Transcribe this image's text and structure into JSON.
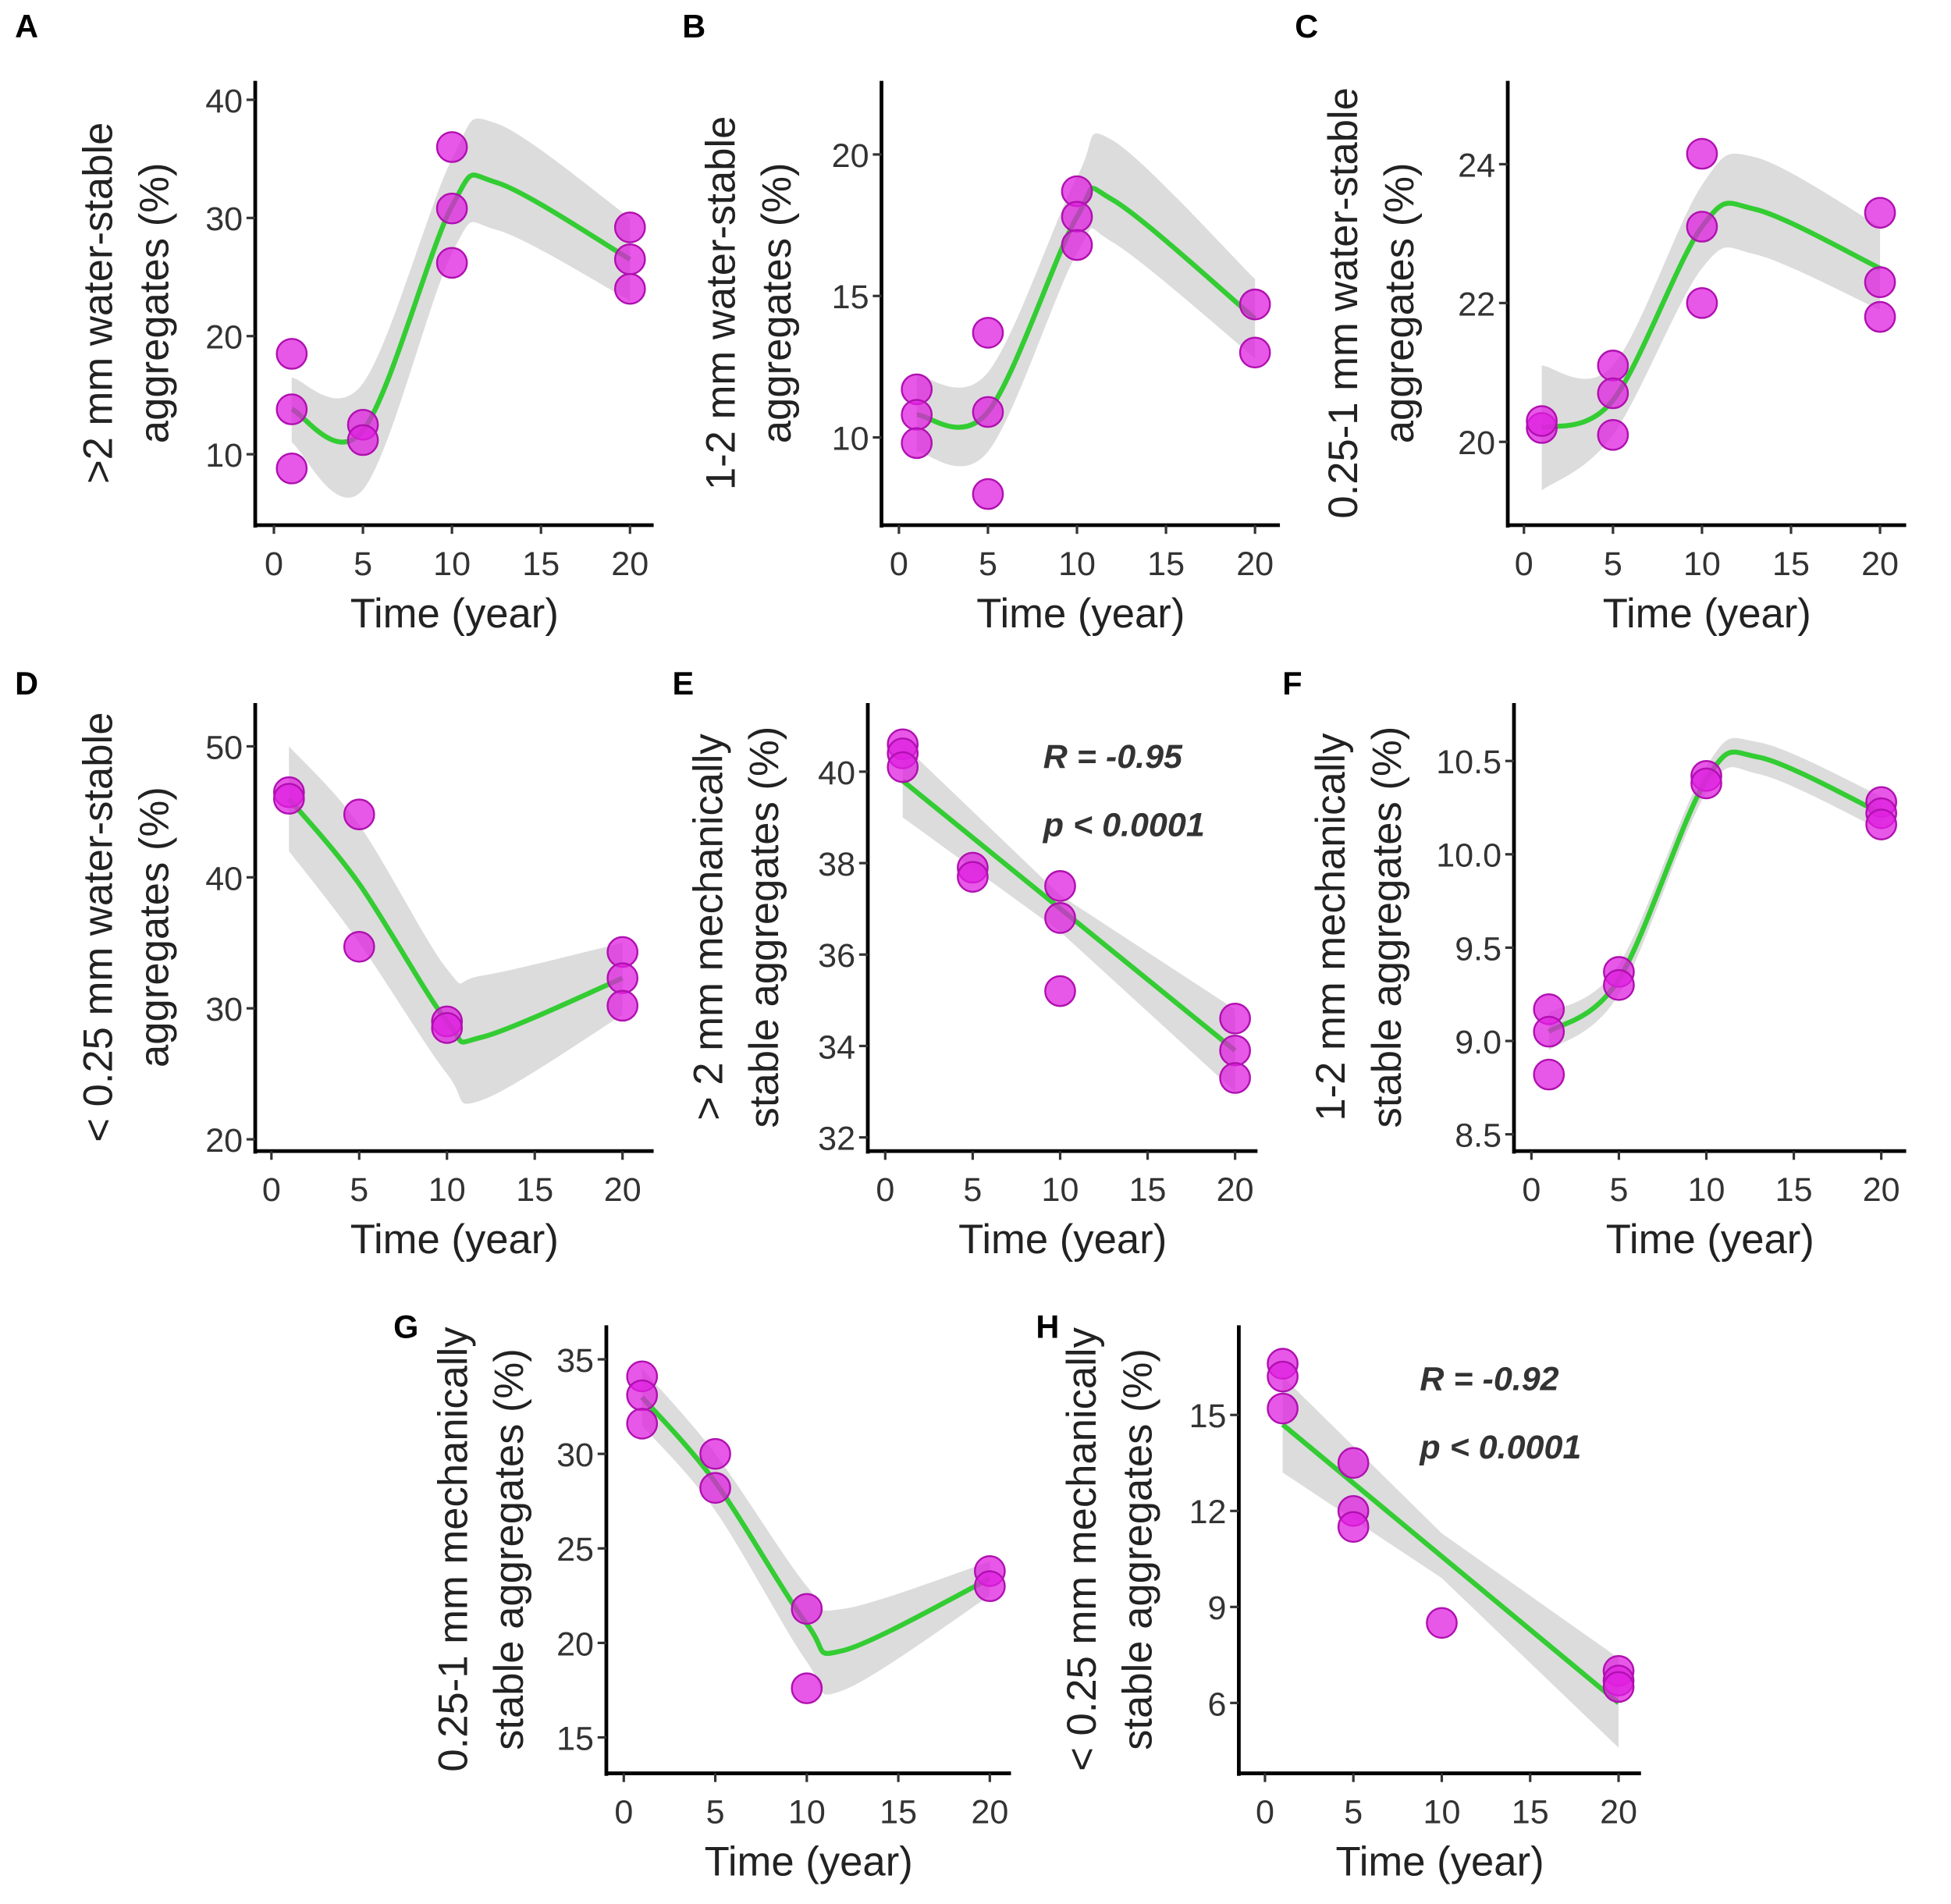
{
  "chart_data": [
    {
      "panel": "A",
      "type": "scatter",
      "xlabel": "Time (year)",
      "ylabel": [
        ">2 mm water-stable",
        "aggregates (%)"
      ],
      "xticks": [
        0,
        5,
        10,
        15,
        20
      ],
      "yticks": [
        10,
        20,
        30,
        40
      ],
      "xlim": [
        -1,
        21.3
      ],
      "ylim": [
        4,
        41.6
      ],
      "points": [
        [
          1,
          18.5
        ],
        [
          1,
          13.8
        ],
        [
          1,
          8.8
        ],
        [
          5,
          12.5
        ],
        [
          5,
          11.2
        ],
        [
          10,
          36
        ],
        [
          10,
          30.8
        ],
        [
          10,
          26.2
        ],
        [
          20,
          29.2
        ],
        [
          20,
          26.5
        ],
        [
          20,
          24
        ]
      ],
      "fit": {
        "kind": "loess",
        "x": [
          1,
          5,
          10,
          12.5,
          20
        ],
        "y": [
          13.8,
          12,
          31,
          33,
          26.5
        ],
        "lower": [
          11,
          7,
          27,
          29,
          23
        ],
        "upper": [
          16.5,
          16,
          35,
          38,
          30
        ]
      }
    },
    {
      "panel": "B",
      "type": "scatter",
      "xlabel": "Time (year)",
      "ylabel": [
        "1-2 mm water-stable",
        "aggregates (%)"
      ],
      "xticks": [
        0,
        5,
        10,
        15,
        20
      ],
      "yticks": [
        10,
        15,
        20
      ],
      "xlim": [
        -1,
        21.3
      ],
      "ylim": [
        6.9,
        22.6
      ],
      "points": [
        [
          1,
          11.7
        ],
        [
          1,
          10.8
        ],
        [
          1,
          9.8
        ],
        [
          5,
          13.7
        ],
        [
          5,
          10.9
        ],
        [
          5,
          8.0
        ],
        [
          10,
          18.7
        ],
        [
          10,
          17.8
        ],
        [
          10,
          16.8
        ],
        [
          20,
          14.7
        ],
        [
          20,
          13.0
        ]
      ],
      "fit": {
        "kind": "loess",
        "x": [
          1,
          5,
          10,
          12,
          20
        ],
        "y": [
          10.8,
          10.9,
          17.8,
          18.4,
          14.2
        ],
        "lower": [
          9.5,
          9.5,
          16.5,
          16.9,
          12.8
        ],
        "upper": [
          12.2,
          12.3,
          19.2,
          20.5,
          15.6
        ]
      }
    },
    {
      "panel": "C",
      "type": "scatter",
      "xlabel": "Time (year)",
      "ylabel": [
        "0.25-1 mm water-stable",
        "aggregates (%)"
      ],
      "xticks": [
        0,
        5,
        10,
        15,
        20
      ],
      "yticks": [
        20,
        22,
        24
      ],
      "xlim": [
        -1,
        21.3
      ],
      "ylim": [
        18.8,
        25.2
      ],
      "points": [
        [
          1,
          20.2
        ],
        [
          1,
          20.3
        ],
        [
          5,
          21.1
        ],
        [
          5,
          20.7
        ],
        [
          5,
          20.1
        ],
        [
          10,
          24.15
        ],
        [
          10,
          23.1
        ],
        [
          10,
          22.0
        ],
        [
          20,
          23.3
        ],
        [
          20,
          22.3
        ],
        [
          20,
          21.8
        ]
      ],
      "fit": {
        "kind": "loess",
        "x": [
          1,
          5,
          10,
          13,
          20
        ],
        "y": [
          20.2,
          20.6,
          23.1,
          23.35,
          22.5
        ],
        "lower": [
          19.3,
          20.1,
          22.5,
          22.7,
          21.9
        ],
        "upper": [
          21.1,
          21.1,
          23.7,
          24.1,
          23.1
        ]
      }
    },
    {
      "panel": "D",
      "type": "scatter",
      "xlabel": "Time (year)",
      "ylabel": [
        "< 0.25 mm water-stable",
        "aggregates (%)"
      ],
      "xticks": [
        0,
        5,
        10,
        15,
        20
      ],
      "yticks": [
        20,
        30,
        40,
        50
      ],
      "xlim": [
        -1,
        21.3
      ],
      "ylim": [
        19.1,
        53.3
      ],
      "points": [
        [
          1,
          46.5
        ],
        [
          1,
          46.0
        ],
        [
          5,
          44.8
        ],
        [
          5,
          34.7
        ],
        [
          10,
          29
        ],
        [
          10,
          28.5
        ],
        [
          20,
          34.3
        ],
        [
          20,
          32.3
        ],
        [
          20,
          30.2
        ]
      ],
      "fit": {
        "kind": "loess",
        "x": [
          1,
          5,
          10,
          12,
          20
        ],
        "y": [
          46,
          39.5,
          29,
          27.8,
          32.3
        ],
        "lower": [
          42,
          35,
          25,
          23,
          29.5
        ],
        "upper": [
          50,
          44,
          33,
          32.5,
          35
        ]
      }
    },
    {
      "panel": "E",
      "type": "scatter",
      "xlabel": "Time (year)",
      "ylabel": [
        "> 2 mm mechanically",
        "stable aggregates (%)"
      ],
      "xticks": [
        0,
        5,
        10,
        15,
        20
      ],
      "yticks": [
        32,
        34,
        36,
        38,
        40
      ],
      "xlim": [
        -1,
        21.3
      ],
      "ylim": [
        31.7,
        41.5
      ],
      "points": [
        [
          1,
          40.6
        ],
        [
          1,
          40.4
        ],
        [
          1,
          40.1
        ],
        [
          5,
          37.9
        ],
        [
          5,
          37.7
        ],
        [
          10,
          37.5
        ],
        [
          10,
          36.8
        ],
        [
          10,
          35.2
        ],
        [
          20,
          34.6
        ],
        [
          20,
          33.9
        ],
        [
          20,
          33.3
        ]
      ],
      "fit": {
        "kind": "linear",
        "x": [
          1,
          10,
          20
        ],
        "y": [
          39.8,
          36.9,
          33.9
        ],
        "lower": [
          39.0,
          36.5,
          33.0
        ],
        "upper": [
          40.6,
          37.3,
          34.8
        ]
      },
      "annotation": {
        "r": "R = -0.95",
        "p": "p < 0.0001"
      }
    },
    {
      "panel": "F",
      "type": "scatter",
      "xlabel": "Time (year)",
      "ylabel": [
        "1-2 mm mechanically",
        "stable aggregates (%)"
      ],
      "xticks": [
        0,
        5,
        10,
        15,
        20
      ],
      "yticks": [
        "8.5",
        "9.0",
        "9.5",
        "10.0",
        "10.5"
      ],
      "xlim": [
        -1,
        21.3
      ],
      "ylim": [
        8.41,
        10.81
      ],
      "points": [
        [
          1,
          9.17
        ],
        [
          1,
          9.05
        ],
        [
          1,
          8.82
        ],
        [
          5,
          9.37
        ],
        [
          5,
          9.3
        ],
        [
          10,
          10.42
        ],
        [
          10,
          10.38
        ],
        [
          20,
          10.28
        ],
        [
          20,
          10.22
        ],
        [
          20,
          10.16
        ]
      ],
      "fit": {
        "kind": "loess",
        "x": [
          1,
          5,
          10,
          13,
          20
        ],
        "y": [
          9.05,
          9.33,
          10.4,
          10.52,
          10.22
        ],
        "lower": [
          8.95,
          9.25,
          10.33,
          10.43,
          10.13
        ],
        "upper": [
          9.15,
          9.41,
          10.47,
          10.6,
          10.31
        ]
      }
    },
    {
      "panel": "G",
      "type": "scatter",
      "xlabel": "Time (year)",
      "ylabel": [
        "0.25-1 mm mechanically",
        "stable aggregates (%)"
      ],
      "xticks": [
        0,
        5,
        10,
        15,
        20
      ],
      "yticks": [
        15,
        20,
        25,
        30,
        35
      ],
      "xlim": [
        -1,
        21.3
      ],
      "ylim": [
        13.1,
        36.8
      ],
      "points": [
        [
          1,
          34.1
        ],
        [
          1,
          33.1
        ],
        [
          1,
          31.6
        ],
        [
          5,
          30
        ],
        [
          5,
          28.2
        ],
        [
          10,
          21.8
        ],
        [
          10,
          17.6
        ],
        [
          20,
          23.8
        ],
        [
          20,
          23.0
        ]
      ],
      "fit": {
        "kind": "loess",
        "x": [
          1,
          5,
          10,
          12,
          20
        ],
        "y": [
          33,
          28.5,
          21,
          19.6,
          23.4
        ],
        "lower": [
          31.5,
          27,
          19,
          17.5,
          22.5
        ],
        "upper": [
          34.5,
          30,
          23,
          21.8,
          24.3
        ]
      }
    },
    {
      "panel": "H",
      "type": "scatter",
      "xlabel": "Time (year)",
      "ylabel": [
        "< 0.25 mm mechanically",
        "stable aggregates (%)"
      ],
      "xticks": [
        0,
        5,
        10,
        15,
        20
      ],
      "yticks": [
        6,
        9,
        12,
        15
      ],
      "xlim": [
        -1,
        21.3
      ],
      "ylim": [
        3.8,
        17.8
      ],
      "points": [
        [
          1,
          16.6
        ],
        [
          1,
          16.2
        ],
        [
          1,
          15.2
        ],
        [
          5,
          13.5
        ],
        [
          5,
          12
        ],
        [
          5,
          11.5
        ],
        [
          10,
          8.5
        ],
        [
          20,
          7
        ],
        [
          20,
          6.7
        ],
        [
          20,
          6.5
        ]
      ],
      "fit": {
        "kind": "linear",
        "x": [
          1,
          10,
          20
        ],
        "y": [
          14.7,
          10.6,
          6
        ],
        "lower": [
          13.2,
          9.9,
          4.6
        ],
        "upper": [
          16.2,
          11.3,
          7.4
        ]
      },
      "annotation": {
        "r": "R = -0.92",
        "p": "p < 0.0001"
      }
    }
  ],
  "colors": {
    "points": "#e020e0",
    "fit_line": "#33cc33",
    "band": "#d6d6d6",
    "axis": "#000000"
  }
}
